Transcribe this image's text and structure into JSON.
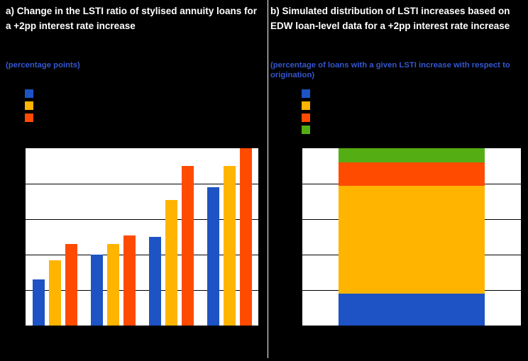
{
  "panel_a": {
    "title": "a) Change in the LSTI ratio of stylised annuity loans for a +2pp interest rate increase",
    "subtitle": "(percentage points)"
  },
  "panel_b": {
    "title": "b) Simulated distribution of LSTI increases based on EDW loan-level data for a +2pp interest rate increase",
    "subtitle": "(percentage of loans with a given LSTI increase with respect to origination)"
  },
  "colors": {
    "background": "#000000",
    "title_white": "#FFFFFF",
    "subtitle_blue": "#3557CE",
    "blue": "#1D53C4",
    "yellow": "#FFB400",
    "orange": "#FF4B00",
    "green": "#55AD14",
    "gridline": "#000000",
    "plot_background": "#FFFFFF"
  },
  "chart_data": [
    {
      "type": "bar",
      "title": "a) Change in the LSTI ratio of stylised annuity loans for a +2pp interest rate increase",
      "ylabel": "percentage points",
      "ylim": [
        0,
        5
      ],
      "grid": true,
      "gridline_step": 1,
      "legend_position": "top-left",
      "legend_labels_visible": false,
      "xtick_labels_visible": false,
      "ytick_labels_visible": false,
      "categories": [
        "",
        "",
        "",
        ""
      ],
      "series": [
        {
          "name": "series-blue",
          "color": "#1D53C4",
          "values": [
            1.3,
            2.0,
            2.5,
            3.9
          ]
        },
        {
          "name": "series-yellow",
          "color": "#FFB400",
          "values": [
            1.85,
            2.3,
            3.55,
            4.5
          ]
        },
        {
          "name": "series-orange",
          "color": "#FF4B00",
          "values": [
            2.3,
            2.55,
            4.5,
            5.0
          ]
        }
      ]
    },
    {
      "type": "bar",
      "subtype": "stacked-single-column",
      "title": "b) Simulated distribution of LSTI increases based on EDW loan-level data for a +2pp interest rate increase",
      "ylabel": "percentage of loans with a given LSTI increase with respect to origination",
      "ylim": [
        0,
        100
      ],
      "grid": true,
      "gridline_step": 20,
      "legend_position": "top-left",
      "legend_labels_visible": false,
      "ytick_labels_visible": false,
      "segments_bottom_to_top": [
        {
          "name": "segment-blue",
          "color": "#1D53C4",
          "value": 18
        },
        {
          "name": "segment-yellow",
          "color": "#FFB400",
          "value": 61
        },
        {
          "name": "segment-orange",
          "color": "#FF4B00",
          "value": 13
        },
        {
          "name": "segment-green",
          "color": "#55AD14",
          "value": 8
        }
      ]
    }
  ]
}
